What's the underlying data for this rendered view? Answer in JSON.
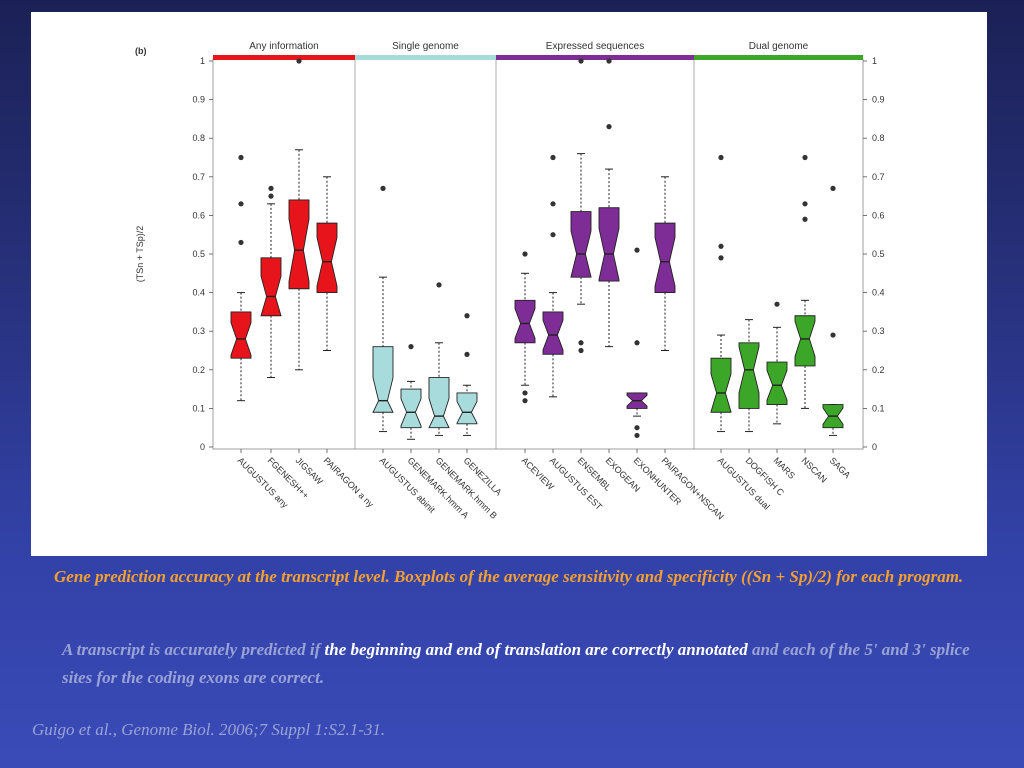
{
  "slide": {
    "caption": "Gene prediction accuracy at the transcript level. Boxplots of the average sensitivity and specificity ((Sn + Sp)/2) for each program.",
    "note_part1": "A transcript is accurately predicted if ",
    "note_highlight": "the beginning and end of translation are correctly annotated",
    "note_part2": " and each of the 5' and 3' splice sites for the coding exons are correct.",
    "citation": "Guigo et al., Genome Biol. 2006;7 Suppl 1:S2.1-31."
  },
  "chart_data": {
    "type": "boxplot",
    "panel_label": "(b)",
    "ylabel": "(TSn + TSp)/2",
    "ylim": [
      0,
      1
    ],
    "yticks": [
      "0",
      "0.1",
      "0.2",
      "0.3",
      "0.4",
      "0.5",
      "0.6",
      "0.7",
      "0.8",
      "0.9",
      "1"
    ],
    "grid": false,
    "groups": [
      {
        "name": "Any information",
        "color": "#e8141c",
        "programs": [
          {
            "name": "AUGUSTUS any",
            "q1": 0.23,
            "median": 0.28,
            "q3": 0.35,
            "wlow": 0.12,
            "whigh": 0.4,
            "outliers": [
              0.53,
              0.63,
              0.75
            ]
          },
          {
            "name": "FGENESH++",
            "q1": 0.34,
            "median": 0.39,
            "q3": 0.49,
            "wlow": 0.18,
            "whigh": 0.63,
            "outliers": [
              0.65,
              0.67
            ]
          },
          {
            "name": "JIGSAW",
            "q1": 0.41,
            "median": 0.51,
            "q3": 0.64,
            "wlow": 0.2,
            "whigh": 0.77,
            "outliers": [
              1.0
            ]
          },
          {
            "name": "PAIRAGON a ny",
            "q1": 0.4,
            "median": 0.48,
            "q3": 0.58,
            "wlow": 0.25,
            "whigh": 0.7,
            "outliers": []
          }
        ]
      },
      {
        "name": "Single genome",
        "color": "#a8dcdc",
        "programs": [
          {
            "name": "AUGUSTUS abinit",
            "q1": 0.09,
            "median": 0.12,
            "q3": 0.26,
            "wlow": 0.04,
            "whigh": 0.44,
            "outliers": [
              0.67
            ]
          },
          {
            "name": "GENEMARK.hmm A",
            "q1": 0.05,
            "median": 0.09,
            "q3": 0.15,
            "wlow": 0.02,
            "whigh": 0.17,
            "outliers": [
              0.26
            ]
          },
          {
            "name": "GENEMARK.hmm B",
            "q1": 0.05,
            "median": 0.08,
            "q3": 0.18,
            "wlow": 0.03,
            "whigh": 0.27,
            "outliers": [
              0.42
            ]
          },
          {
            "name": "GENEZILLA",
            "q1": 0.06,
            "median": 0.09,
            "q3": 0.14,
            "wlow": 0.03,
            "whigh": 0.16,
            "outliers": [
              0.24,
              0.34
            ]
          }
        ]
      },
      {
        "name": "Expressed sequences",
        "color": "#7e2c96",
        "programs": [
          {
            "name": "ACEVIEW",
            "q1": 0.27,
            "median": 0.32,
            "q3": 0.38,
            "wlow": 0.16,
            "whigh": 0.45,
            "outliers": [
              0.12,
              0.14,
              0.5
            ]
          },
          {
            "name": "AUGUSTUS EST",
            "q1": 0.24,
            "median": 0.29,
            "q3": 0.35,
            "wlow": 0.13,
            "whigh": 0.4,
            "outliers": [
              0.55,
              0.63,
              0.75
            ]
          },
          {
            "name": "ENSEMBL",
            "q1": 0.44,
            "median": 0.5,
            "q3": 0.61,
            "wlow": 0.37,
            "whigh": 0.76,
            "outliers": [
              0.25,
              0.27,
              1.0
            ]
          },
          {
            "name": "EXOGEAN",
            "q1": 0.43,
            "median": 0.5,
            "q3": 0.62,
            "wlow": 0.26,
            "whigh": 0.72,
            "outliers": [
              0.83,
              1.0
            ]
          },
          {
            "name": "EXONHUNTER",
            "q1": 0.1,
            "median": 0.12,
            "q3": 0.14,
            "wlow": 0.08,
            "whigh": 0.14,
            "outliers": [
              0.03,
              0.05,
              0.27,
              0.51
            ]
          },
          {
            "name": "PAIRAGON+NSCAN",
            "q1": 0.4,
            "median": 0.48,
            "q3": 0.58,
            "wlow": 0.25,
            "whigh": 0.7,
            "outliers": []
          }
        ]
      },
      {
        "name": "Dual genome",
        "color": "#3ca628",
        "programs": [
          {
            "name": "AUGUSTUS dual",
            "q1": 0.09,
            "median": 0.14,
            "q3": 0.23,
            "wlow": 0.04,
            "whigh": 0.29,
            "outliers": [
              0.49,
              0.52,
              0.75
            ]
          },
          {
            "name": "DOGFISH C",
            "q1": 0.1,
            "median": 0.2,
            "q3": 0.27,
            "wlow": 0.04,
            "whigh": 0.33,
            "outliers": []
          },
          {
            "name": "MARS",
            "q1": 0.11,
            "median": 0.16,
            "q3": 0.22,
            "wlow": 0.06,
            "whigh": 0.31,
            "outliers": [
              0.37
            ]
          },
          {
            "name": "NSCAN",
            "q1": 0.21,
            "median": 0.28,
            "q3": 0.34,
            "wlow": 0.1,
            "whigh": 0.38,
            "outliers": [
              0.59,
              0.63,
              0.75
            ]
          },
          {
            "name": "SAGA",
            "q1": 0.05,
            "median": 0.08,
            "q3": 0.11,
            "wlow": 0.03,
            "whigh": 0.11,
            "outliers": [
              0.29,
              0.67
            ]
          }
        ]
      }
    ]
  }
}
